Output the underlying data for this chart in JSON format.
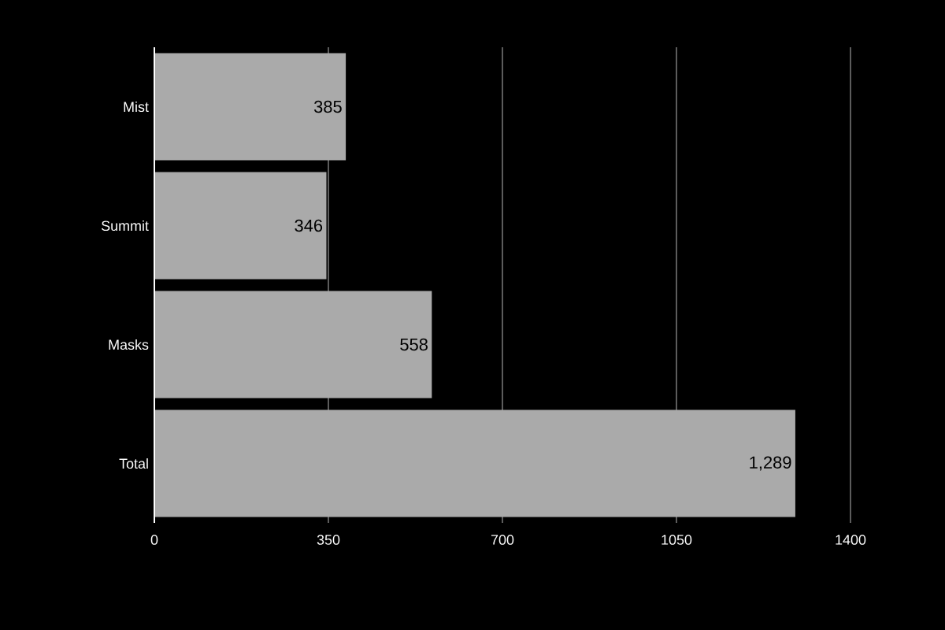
{
  "chart_data": {
    "type": "bar",
    "orientation": "horizontal",
    "categories": [
      "Mist",
      "Summit",
      "Masks",
      "Total"
    ],
    "values": [
      385,
      346,
      558,
      1289
    ],
    "value_labels": [
      "385",
      "346",
      "558",
      "1,289"
    ],
    "color": "#aaaaaa",
    "xlim": [
      0,
      1400
    ],
    "xticks": [
      0,
      350,
      700,
      1050,
      1400
    ],
    "grid": "x"
  }
}
